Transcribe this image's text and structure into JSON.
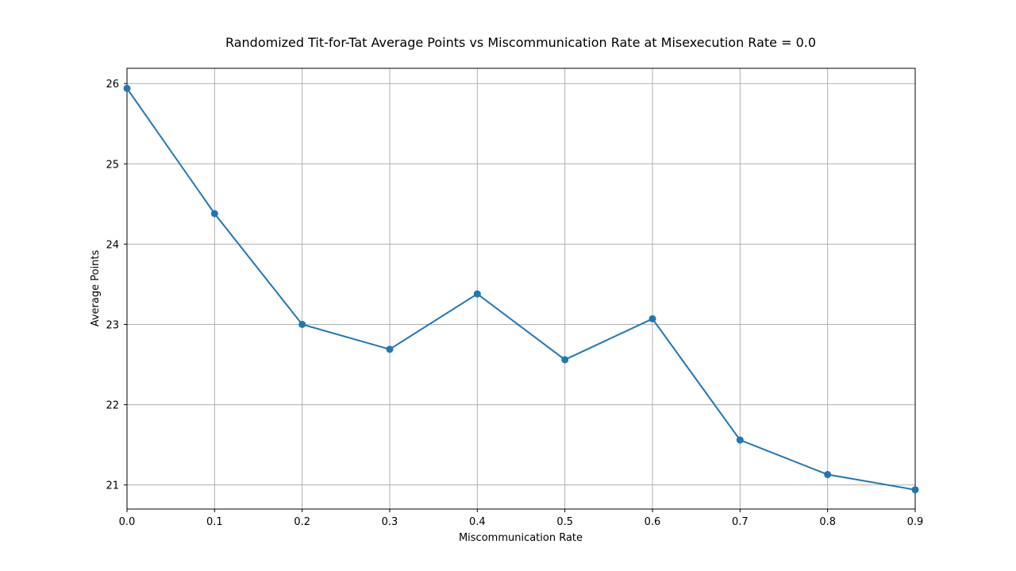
{
  "chart_data": {
    "type": "line",
    "title": "Randomized Tit-for-Tat Average Points vs Miscommunication Rate at Misexecution Rate = 0.0",
    "xlabel": "Miscommunication Rate",
    "ylabel": "Average Points",
    "xlim": [
      0.0,
      0.9
    ],
    "ylim": [
      20.7,
      26.19
    ],
    "x_ticks": [
      0.0,
      0.1,
      0.2,
      0.3,
      0.4,
      0.5,
      0.6,
      0.7,
      0.8,
      0.9
    ],
    "x_tick_labels": [
      "0.0",
      "0.1",
      "0.2",
      "0.3",
      "0.4",
      "0.5",
      "0.6",
      "0.7",
      "0.8",
      "0.9"
    ],
    "y_ticks": [
      21,
      22,
      23,
      24,
      25,
      26
    ],
    "y_tick_labels": [
      "21",
      "22",
      "23",
      "24",
      "25",
      "26"
    ],
    "grid": true,
    "series": [
      {
        "color": "#1f77b4",
        "marker": "circle",
        "x": [
          0.0,
          0.1,
          0.2,
          0.3,
          0.4,
          0.5,
          0.6,
          0.7,
          0.8,
          0.9
        ],
        "y": [
          25.94,
          24.38,
          23.0,
          22.69,
          23.38,
          22.56,
          23.07,
          21.56,
          21.13,
          20.94
        ]
      }
    ]
  }
}
